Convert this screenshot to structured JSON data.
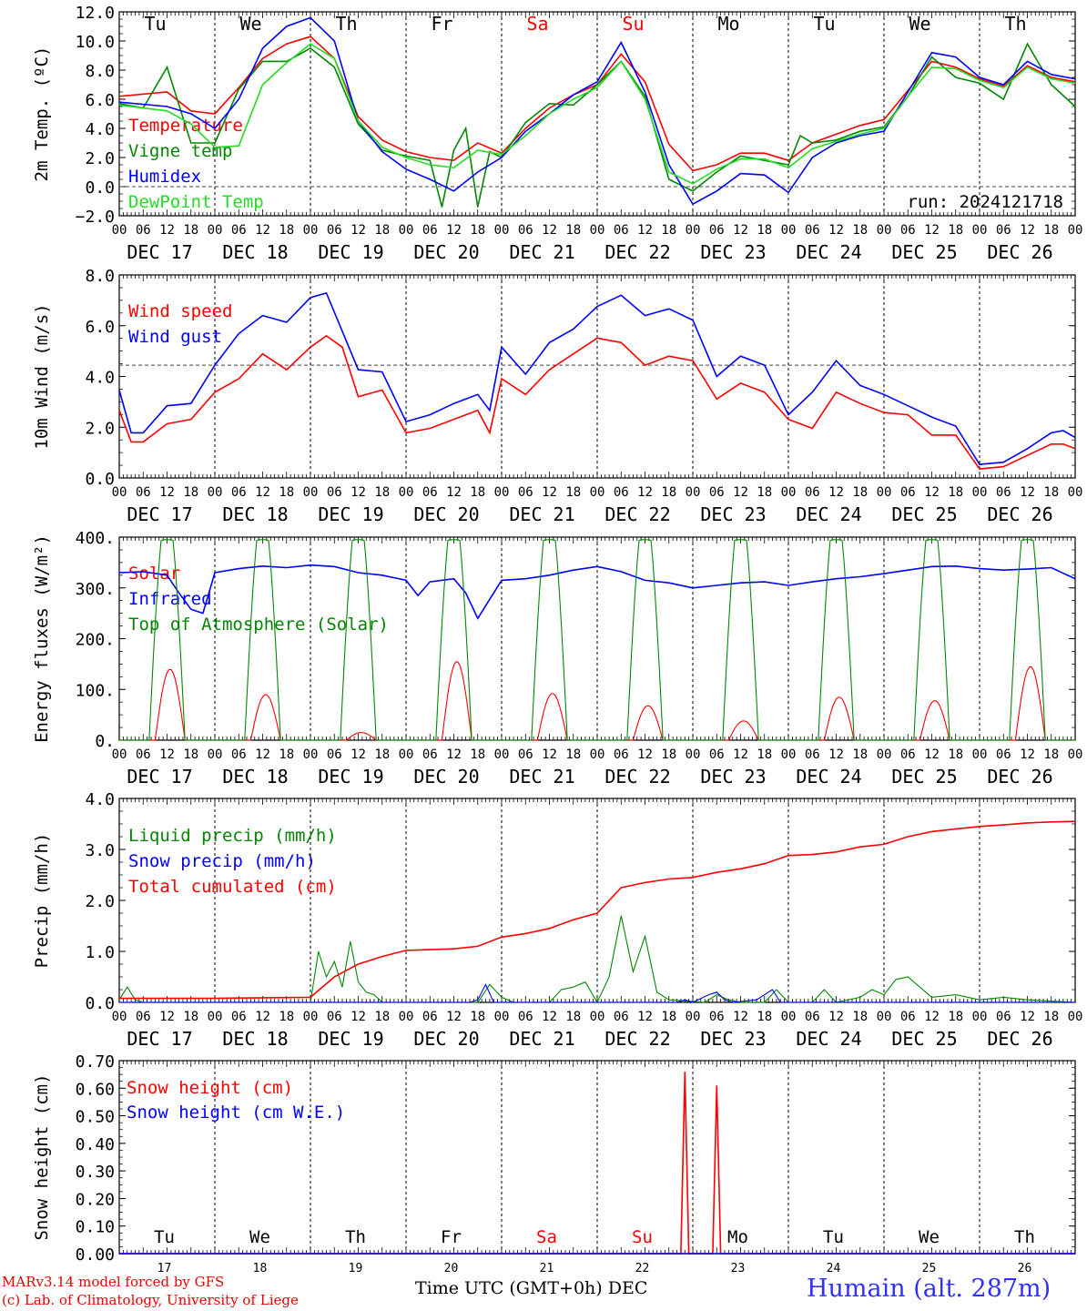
{
  "colors": {
    "red": "#ff0000",
    "dark_green": "#008800",
    "blue": "#0000ff",
    "light_green": "#22dd22",
    "weekend": "#ff0000",
    "station": "#3030ff"
  },
  "time_axis": {
    "hour_ticks": [
      "00",
      "06",
      "12",
      "18"
    ],
    "final_tick": "00",
    "dates": [
      "DEC 17",
      "DEC 18",
      "DEC 19",
      "DEC 20",
      "DEC 21",
      "DEC 22",
      "DEC 23",
      "DEC 24",
      "DEC 25",
      "DEC 26"
    ],
    "weekdays": [
      "Tu",
      "We",
      "Th",
      "Fr",
      "Sa",
      "Su",
      "Mo",
      "Tu",
      "We",
      "Th"
    ],
    "weekend_days": [
      4,
      5
    ],
    "day_numbers": [
      "17",
      "18",
      "19",
      "20",
      "21",
      "22",
      "23",
      "24",
      "25",
      "26"
    ]
  },
  "footer": {
    "credit_line1": "MARv3.14 model forced by GFS",
    "credit_line2": "(c) Lab. of Climatology, University of Liege",
    "time_label": "Time UTC (GMT+0h) DEC",
    "station": "Humain (alt. 287m)"
  },
  "chart_data": [
    {
      "id": "temp",
      "type": "line",
      "ylabel": "2m Temp. (ºC)",
      "ylim": [
        -2,
        12
      ],
      "yticks": [
        "−2.0",
        "0.0",
        "2.0",
        "4.0",
        "6.0",
        "8.0",
        "10.0",
        "12.0"
      ],
      "ref_line": 0,
      "annotation": "run: 2024121718",
      "x_unit": "hours since DEC 17 00 UTC",
      "series": [
        {
          "name": "Temperature",
          "color": "#ff0000",
          "x": [
            0,
            12,
            18,
            24,
            30,
            36,
            42,
            48,
            54,
            60,
            66,
            72,
            78,
            84,
            90,
            96,
            102,
            108,
            114,
            120,
            126,
            132,
            138,
            144,
            150,
            156,
            162,
            168,
            174,
            180,
            186,
            192,
            198,
            204,
            210,
            216,
            222,
            228,
            234,
            240
          ],
          "y": [
            6.2,
            6.5,
            5.2,
            5.0,
            6.8,
            8.8,
            9.8,
            10.3,
            8.8,
            4.8,
            3.2,
            2.4,
            2.0,
            1.8,
            3.0,
            2.3,
            4.0,
            5.4,
            6.3,
            7.0,
            9.1,
            7.2,
            2.9,
            1.1,
            1.5,
            2.3,
            2.3,
            1.8,
            3.0,
            3.6,
            4.2,
            4.6,
            6.6,
            8.6,
            8.2,
            7.4,
            6.9,
            8.3,
            7.5,
            7.2
          ]
        },
        {
          "name": "Vigne temp",
          "color": "#008800",
          "x": [
            0,
            6,
            12,
            18,
            24,
            30,
            36,
            42,
            48,
            54,
            60,
            66,
            72,
            78,
            81,
            84,
            87,
            90,
            93,
            96,
            102,
            108,
            114,
            120,
            126,
            132,
            138,
            144,
            150,
            156,
            162,
            168,
            171,
            174,
            180,
            186,
            192,
            198,
            204,
            210,
            216,
            222,
            228,
            234,
            240
          ],
          "y": [
            5.7,
            5.4,
            8.2,
            3.0,
            3.0,
            6.7,
            8.6,
            8.6,
            9.5,
            8.2,
            4.3,
            2.5,
            2.1,
            1.8,
            -1.4,
            2.5,
            4.0,
            -1.4,
            2.4,
            2.0,
            4.4,
            5.7,
            5.6,
            7.0,
            8.6,
            6.2,
            0.5,
            -0.3,
            1.0,
            2.1,
            1.8,
            1.5,
            3.5,
            3.0,
            3.2,
            3.8,
            4.1,
            6.2,
            8.9,
            7.5,
            7.1,
            6.0,
            9.8,
            7.0,
            5.5
          ]
        },
        {
          "name": "Humidex",
          "color": "#0000ff",
          "x": [
            0,
            12,
            18,
            24,
            30,
            36,
            42,
            48,
            54,
            60,
            66,
            72,
            78,
            84,
            90,
            96,
            102,
            108,
            114,
            120,
            126,
            132,
            138,
            144,
            150,
            156,
            162,
            168,
            174,
            180,
            186,
            192,
            198,
            204,
            210,
            216,
            222,
            228,
            234,
            240
          ],
          "y": [
            5.8,
            5.5,
            5.0,
            4.0,
            6.0,
            9.5,
            11.0,
            11.6,
            10.0,
            4.5,
            2.4,
            1.2,
            0.5,
            -0.3,
            1.0,
            2.0,
            3.8,
            5.0,
            6.3,
            7.2,
            9.9,
            6.5,
            1.5,
            -1.2,
            -0.3,
            0.9,
            0.8,
            -0.4,
            2.0,
            3.0,
            3.5,
            3.8,
            6.5,
            9.2,
            8.9,
            7.5,
            7.0,
            8.6,
            7.7,
            7.4
          ]
        },
        {
          "name": "DewPoint Temp",
          "color": "#22dd22",
          "x": [
            0,
            12,
            18,
            24,
            30,
            36,
            42,
            48,
            54,
            60,
            66,
            72,
            78,
            84,
            90,
            96,
            102,
            108,
            114,
            120,
            126,
            132,
            138,
            144,
            150,
            156,
            162,
            168,
            174,
            180,
            186,
            192,
            198,
            204,
            210,
            216,
            222,
            228,
            234,
            240
          ],
          "y": [
            5.6,
            5.2,
            4.3,
            2.7,
            2.8,
            7.0,
            8.5,
            9.8,
            8.8,
            4.5,
            2.7,
            2.0,
            1.5,
            1.3,
            2.5,
            2.2,
            3.5,
            5.0,
            6.0,
            6.8,
            8.6,
            6.0,
            1.0,
            0.2,
            1.2,
            1.9,
            1.9,
            1.3,
            2.6,
            3.1,
            3.6,
            4.0,
            6.2,
            8.2,
            8.1,
            7.3,
            6.8,
            8.2,
            7.4,
            7.1
          ]
        }
      ]
    },
    {
      "id": "wind",
      "type": "line",
      "ylabel": "10m Wind (m/s)",
      "ylim": [
        0,
        9
      ],
      "yticks": [
        "0.0",
        "2.0",
        "4.0",
        "6.0",
        "8.0"
      ],
      "ref_line": 5,
      "x_unit": "hours since DEC 17 00 UTC",
      "series": [
        {
          "name": "Wind speed",
          "color": "#ff0000",
          "x": [
            0,
            3,
            6,
            12,
            18,
            24,
            30,
            36,
            42,
            48,
            52,
            56,
            60,
            66,
            72,
            78,
            84,
            90,
            93,
            96,
            102,
            108,
            114,
            120,
            126,
            132,
            138,
            144,
            150,
            156,
            162,
            168,
            174,
            180,
            186,
            192,
            198,
            204,
            210,
            216,
            222,
            228,
            234,
            237,
            240
          ],
          "y": [
            3.0,
            1.6,
            1.6,
            2.4,
            2.6,
            3.8,
            4.4,
            5.5,
            4.8,
            5.8,
            6.3,
            5.8,
            3.6,
            3.9,
            2.0,
            2.2,
            2.6,
            3.0,
            2.0,
            4.4,
            3.7,
            4.8,
            5.5,
            6.2,
            6.0,
            5.0,
            5.4,
            5.2,
            3.5,
            4.2,
            3.8,
            2.6,
            2.2,
            3.8,
            3.3,
            2.9,
            2.8,
            1.9,
            1.9,
            0.4,
            0.5,
            1.0,
            1.5,
            1.5,
            1.3
          ]
        },
        {
          "name": "Wind gust",
          "color": "#0000ff",
          "x": [
            0,
            3,
            6,
            12,
            18,
            24,
            30,
            36,
            42,
            48,
            52,
            56,
            60,
            66,
            72,
            78,
            84,
            90,
            93,
            96,
            102,
            108,
            114,
            120,
            126,
            132,
            138,
            144,
            150,
            156,
            162,
            168,
            174,
            180,
            186,
            192,
            198,
            204,
            210,
            216,
            222,
            228,
            234,
            237,
            240
          ],
          "y": [
            3.9,
            2.0,
            2.0,
            3.2,
            3.3,
            5.0,
            6.4,
            7.2,
            6.9,
            8.0,
            8.2,
            6.5,
            4.8,
            4.7,
            2.5,
            2.8,
            3.3,
            3.7,
            3.0,
            5.8,
            4.6,
            6.0,
            6.6,
            7.6,
            8.1,
            7.2,
            7.5,
            7.0,
            4.5,
            5.4,
            5.0,
            2.8,
            3.8,
            5.2,
            4.1,
            3.7,
            3.2,
            2.7,
            2.3,
            0.6,
            0.7,
            1.3,
            2.0,
            2.1,
            1.8
          ]
        }
      ]
    },
    {
      "id": "energy",
      "type": "line",
      "ylabel": "Energy fluxes (W/m²)",
      "ylim": [
        0,
        400
      ],
      "yticks": [
        "0.",
        "100.",
        "200.",
        "300.",
        "400."
      ],
      "x_unit": "hours since DEC 17 00 UTC",
      "series": [
        {
          "name": "Solar",
          "color": "#ff0000",
          "diurnal_peaks": [
            140,
            90,
            15,
            155,
            92,
            68,
            38,
            85,
            78,
            145
          ]
        },
        {
          "name": "Infrared",
          "color": "#0000ff",
          "x": [
            0,
            6,
            12,
            15,
            18,
            21,
            24,
            30,
            36,
            42,
            48,
            54,
            60,
            66,
            72,
            75,
            78,
            84,
            87,
            90,
            96,
            102,
            108,
            114,
            120,
            126,
            132,
            138,
            144,
            150,
            156,
            162,
            168,
            174,
            180,
            186,
            192,
            198,
            204,
            210,
            216,
            222,
            228,
            234,
            240
          ],
          "y": [
            330,
            332,
            325,
            290,
            258,
            250,
            330,
            338,
            343,
            340,
            345,
            342,
            330,
            325,
            315,
            285,
            312,
            318,
            290,
            240,
            315,
            318,
            325,
            335,
            342,
            332,
            315,
            310,
            300,
            305,
            310,
            312,
            305,
            312,
            318,
            322,
            328,
            335,
            342,
            343,
            338,
            335,
            337,
            340,
            318
          ]
        },
        {
          "name": "Top of Atmosphere (Solar)",
          "color": "#008800",
          "diurnal_peak": 395,
          "sunrise_hour": 7.5,
          "sunset_hour": 16.5
        }
      ]
    },
    {
      "id": "precip",
      "type": "line",
      "ylabel": "Precip (mm/h)",
      "ylim": [
        0,
        4
      ],
      "yticks": [
        "0.0",
        "1.0",
        "2.0",
        "3.0",
        "4.0"
      ],
      "x_unit": "hours since DEC 17 00 UTC",
      "series": [
        {
          "name": "Liquid precip (mm/h)",
          "color": "#008800",
          "x": [
            0,
            2,
            4,
            6,
            48,
            50,
            52,
            54,
            56,
            58,
            60,
            62,
            64,
            66,
            70,
            90,
            93,
            96,
            99,
            108,
            111,
            114,
            117,
            120,
            123,
            126,
            129,
            132,
            135,
            138,
            147,
            150,
            153,
            156,
            162,
            165,
            168,
            174,
            177,
            180,
            186,
            189,
            192,
            195,
            198,
            204,
            210,
            216,
            222,
            228,
            240
          ],
          "y": [
            0.05,
            0.3,
            0.05,
            0.0,
            0.0,
            1.0,
            0.5,
            0.8,
            0.3,
            1.2,
            0.4,
            0.2,
            0.15,
            0.0,
            0.0,
            0.0,
            0.35,
            0.1,
            0.0,
            0.0,
            0.25,
            0.3,
            0.4,
            0.0,
            0.5,
            1.7,
            0.6,
            1.3,
            0.2,
            0.05,
            0.0,
            0.15,
            0.05,
            0.0,
            0.0,
            0.25,
            0.0,
            0.0,
            0.25,
            0.0,
            0.1,
            0.25,
            0.15,
            0.45,
            0.5,
            0.1,
            0.15,
            0.05,
            0.1,
            0.05,
            0.0
          ]
        },
        {
          "name": "Snow precip (mm/h)",
          "color": "#0000ff",
          "x": [
            0,
            88,
            90,
            92,
            94,
            140,
            142,
            144,
            148,
            150,
            152,
            154,
            160,
            164,
            166,
            240
          ],
          "y": [
            0,
            0,
            0.05,
            0.35,
            0.0,
            0.0,
            0.05,
            0.0,
            0.15,
            0.2,
            0.05,
            0.0,
            0.05,
            0.25,
            0.0,
            0.0
          ]
        },
        {
          "name": "Total cumulated (cm)",
          "color": "#ff0000",
          "x": [
            0,
            24,
            48,
            54,
            60,
            66,
            72,
            84,
            90,
            96,
            102,
            108,
            114,
            120,
            126,
            132,
            138,
            144,
            150,
            156,
            162,
            168,
            174,
            180,
            186,
            192,
            198,
            204,
            210,
            216,
            222,
            228,
            234,
            240
          ],
          "y": [
            0.08,
            0.08,
            0.1,
            0.5,
            0.75,
            0.9,
            1.02,
            1.05,
            1.1,
            1.28,
            1.35,
            1.45,
            1.62,
            1.75,
            2.25,
            2.35,
            2.42,
            2.45,
            2.55,
            2.62,
            2.72,
            2.88,
            2.9,
            2.95,
            3.05,
            3.1,
            3.25,
            3.35,
            3.4,
            3.45,
            3.48,
            3.52,
            3.54,
            3.55
          ]
        }
      ]
    },
    {
      "id": "snow",
      "type": "line",
      "ylabel": "Snow height (cm)",
      "ylim": [
        0,
        0.7
      ],
      "yticks": [
        "0.00",
        "0.10",
        "0.20",
        "0.30",
        "0.40",
        "0.50",
        "0.60",
        "0.70"
      ],
      "x_unit": "hours since DEC 17 00 UTC",
      "series": [
        {
          "name": "Snow height (cm)",
          "color": "#ff0000",
          "x": [
            0,
            141,
            142,
            143,
            149,
            150,
            151,
            240
          ],
          "y": [
            0,
            0,
            0.66,
            0,
            0,
            0.61,
            0,
            0
          ]
        },
        {
          "name": "Snow height (cm W.E.)",
          "color": "#0000ff",
          "x": [
            0,
            240
          ],
          "y": [
            0,
            0
          ]
        }
      ]
    }
  ]
}
